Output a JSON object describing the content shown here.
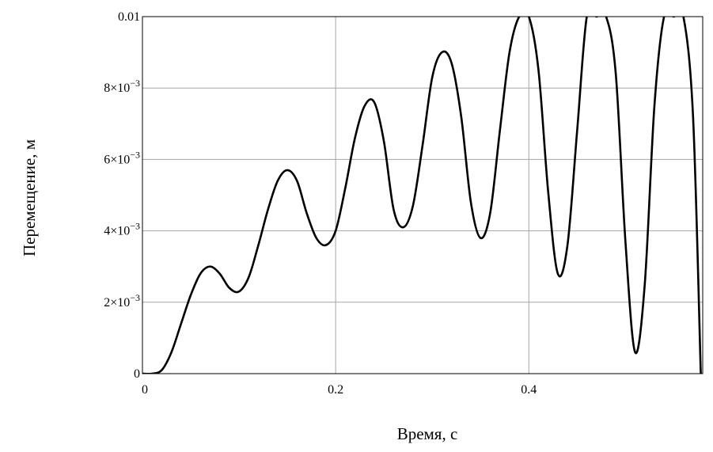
{
  "chart_data": {
    "type": "line",
    "title": "",
    "xlabel": "Время, с",
    "ylabel": "Перемещение, м",
    "xlim": [
      0,
      0.58
    ],
    "ylim": [
      0,
      0.01
    ],
    "grid": true,
    "x_ticks": [
      {
        "value": 0,
        "label": "0"
      },
      {
        "value": 0.2,
        "label": "0.2"
      },
      {
        "value": 0.4,
        "label": "0.4"
      }
    ],
    "y_ticks": [
      {
        "value": 0,
        "mant": "0",
        "exp": ""
      },
      {
        "value": 0.002,
        "mant": "2×10",
        "exp": "−3"
      },
      {
        "value": 0.004,
        "mant": "4×10",
        "exp": "−3"
      },
      {
        "value": 0.006,
        "mant": "6×10",
        "exp": "−3"
      },
      {
        "value": 0.008,
        "mant": "8×10",
        "exp": "−3"
      },
      {
        "value": 0.01,
        "mant": "0.01",
        "exp": ""
      }
    ],
    "series": [
      {
        "color": "#000000",
        "x": [
          0,
          0.01,
          0.02,
          0.03,
          0.04,
          0.05,
          0.06,
          0.07,
          0.08,
          0.09,
          0.1,
          0.11,
          0.12,
          0.13,
          0.14,
          0.15,
          0.16,
          0.17,
          0.18,
          0.19,
          0.2,
          0.21,
          0.22,
          0.23,
          0.24,
          0.25,
          0.26,
          0.27,
          0.28,
          0.29,
          0.3,
          0.31,
          0.32,
          0.33,
          0.34,
          0.35,
          0.36,
          0.37,
          0.38,
          0.39,
          0.4,
          0.41,
          0.42,
          0.43,
          0.44,
          0.45,
          0.46,
          0.47,
          0.48,
          0.49,
          0.5,
          0.51,
          0.52,
          0.53,
          0.54,
          0.55,
          0.56,
          0.57,
          0.578
        ],
        "y": [
          0,
          0,
          0.0001,
          0.0006,
          0.0014,
          0.0022,
          0.0028,
          0.003,
          0.0028,
          0.0024,
          0.0023,
          0.0027,
          0.0036,
          0.0046,
          0.0054,
          0.0057,
          0.0054,
          0.0045,
          0.0038,
          0.0036,
          0.004,
          0.0052,
          0.0066,
          0.0075,
          0.0076,
          0.0065,
          0.0046,
          0.0041,
          0.0047,
          0.0064,
          0.0083,
          0.009,
          0.0087,
          0.0072,
          0.0048,
          0.0038,
          0.0045,
          0.0068,
          0.009,
          0.01,
          0.01,
          0.0085,
          0.0051,
          0.0028,
          0.0036,
          0.0068,
          0.01,
          0.01,
          0.01,
          0.0084,
          0.0037,
          0.0006,
          0.0025,
          0.0075,
          0.01,
          0.01,
          0.01,
          0.0072,
          0
        ]
      }
    ]
  }
}
